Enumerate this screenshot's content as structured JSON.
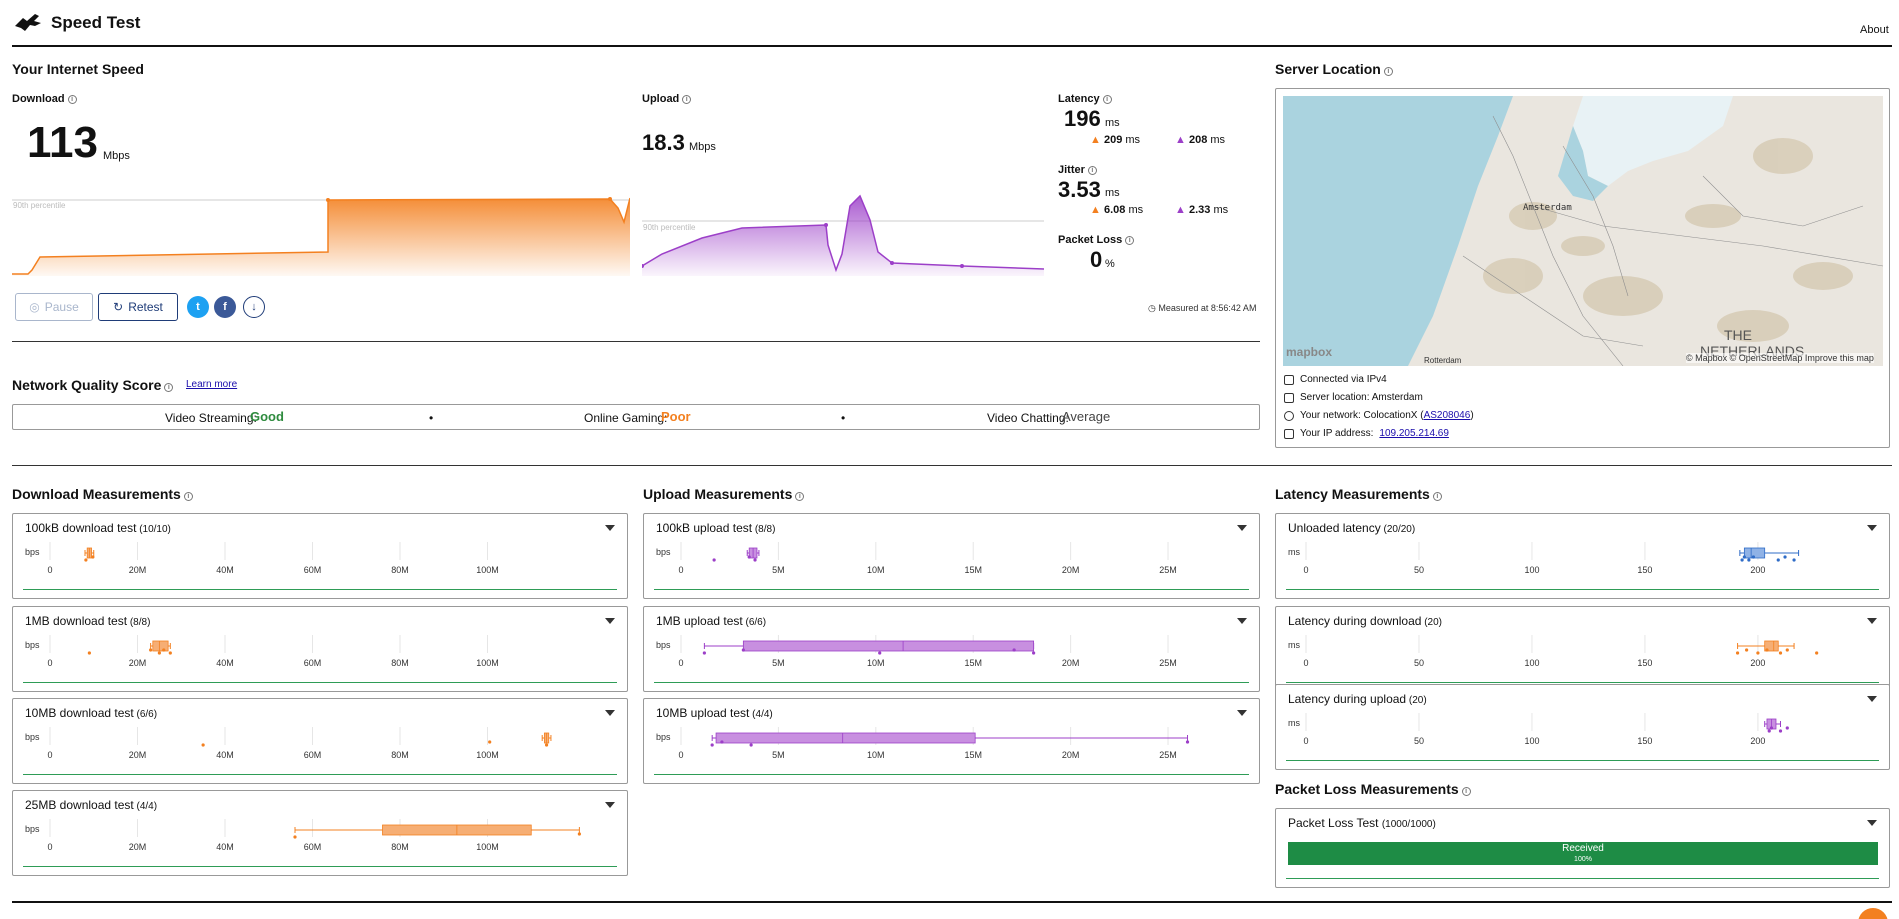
{
  "header": {
    "title": "Speed Test",
    "about": "About"
  },
  "speed": {
    "section_title": "Your Internet Speed",
    "download": {
      "label": "Download",
      "value": "113",
      "unit": "Mbps",
      "percentile": "90th percentile"
    },
    "upload": {
      "label": "Upload",
      "value": "18.3",
      "unit": "Mbps",
      "percentile": "90th percentile"
    },
    "latency": {
      "label": "Latency",
      "value": "196",
      "unit": "ms",
      "down": "209",
      "up": "208",
      "sub_unit": "ms"
    },
    "jitter": {
      "label": "Jitter",
      "value": "3.53",
      "unit": "ms",
      "down": "6.08",
      "up": "2.33",
      "sub_unit": "ms"
    },
    "packet_loss": {
      "label": "Packet Loss",
      "value": "0",
      "unit": "%"
    },
    "pause_label": "Pause",
    "retest_label": "Retest",
    "measured_at": "Measured at 8:56:42 AM"
  },
  "nq": {
    "title": "Network Quality Score",
    "learn_more": "Learn more",
    "streaming_label": "Video Streaming:",
    "streaming_value": "Good",
    "gaming_label": "Online Gaming:",
    "gaming_value": "Poor",
    "chatting_label": "Video Chatting:",
    "chatting_value": "Average",
    "sep": "•"
  },
  "server": {
    "title": "Server Location",
    "map_city": "Amsterdam",
    "map_country_1": "THE",
    "map_country_2": "NETHERLANDS",
    "map_city2": "Rotterdam",
    "mapbox": "mapbox",
    "attribution": "© Mapbox © OpenStreetMap  Improve this map",
    "connected": "Connected via IPv4",
    "location": "Server location: Amsterdam",
    "network_prefix": "Your network: ColocationX (",
    "network_link": "AS208046",
    "network_suffix": ")",
    "ip_prefix": "Your IP address:",
    "ip_link": "109.205.214.69"
  },
  "download_meas": {
    "title": "Download Measurements",
    "unit": "bps",
    "ticks": [
      "0",
      "20M",
      "40M",
      "60M",
      "80M",
      "100M"
    ],
    "tests": [
      {
        "name": "100kB download test",
        "count": "(10/10)"
      },
      {
        "name": "1MB download test",
        "count": "(8/8)"
      },
      {
        "name": "10MB download test",
        "count": "(6/6)"
      },
      {
        "name": "25MB download test",
        "count": "(4/4)"
      }
    ]
  },
  "upload_meas": {
    "title": "Upload Measurements",
    "unit": "bps",
    "ticks": [
      "0",
      "5M",
      "10M",
      "15M",
      "20M",
      "25M"
    ],
    "tests": [
      {
        "name": "100kB upload test",
        "count": "(8/8)"
      },
      {
        "name": "1MB upload test",
        "count": "(6/6)"
      },
      {
        "name": "10MB upload test",
        "count": "(4/4)"
      }
    ]
  },
  "latency_meas": {
    "title": "Latency Measurements",
    "unit": "ms",
    "ticks": [
      "0",
      "50",
      "100",
      "150",
      "200"
    ],
    "tests": [
      {
        "name": "Unloaded latency",
        "count": "(20/20)"
      },
      {
        "name": "Latency during download",
        "count": "(20)"
      },
      {
        "name": "Latency during upload",
        "count": "(20)"
      }
    ]
  },
  "packet_meas": {
    "title": "Packet Loss Measurements",
    "test_name": "Packet Loss Test",
    "test_count": "(1000/1000)",
    "bar_label": "Received",
    "bar_pct": "100%",
    "received_fraction": 1.0
  },
  "colors": {
    "download": "#f38020",
    "download_fill": "#f6ae74",
    "upload": "#9c3fc8",
    "upload_fill": "#c88fe0",
    "latency": "#2f6cc7",
    "latency_fill": "#8fb2e6",
    "good": "#2e8b3e",
    "poor": "#f38020",
    "packet": "#1e8c45"
  },
  "chart_data": [
    {
      "type": "box",
      "title": "100kB download test",
      "unit": "bps",
      "xlim": [
        0,
        120000000
      ],
      "q1": 8500000,
      "median": 9000000,
      "q3": 9500000,
      "min": 8000000,
      "max": 10000000,
      "points": [
        8200000,
        9800000
      ]
    },
    {
      "type": "box",
      "title": "1MB download test",
      "unit": "bps",
      "xlim": [
        0,
        120000000
      ],
      "q1": 23500000,
      "median": 25000000,
      "q3": 27000000,
      "min": 23000000,
      "max": 27500000,
      "points": [
        9000000,
        23000000,
        25000000,
        26000000,
        27500000
      ]
    },
    {
      "type": "box",
      "title": "10MB download test",
      "unit": "bps",
      "xlim": [
        0,
        120000000
      ],
      "q1": 113000000,
      "median": 113500000,
      "q3": 114000000,
      "min": 112500000,
      "max": 114500000,
      "points": [
        35000000,
        100500000,
        113500000
      ]
    },
    {
      "type": "box",
      "title": "25MB download test",
      "unit": "bps",
      "xlim": [
        0,
        120000000
      ],
      "q1": 76000000,
      "median": 93000000,
      "q3": 110000000,
      "min": 56000000,
      "max": 121000000,
      "points": [
        56000000,
        121000000
      ]
    },
    {
      "type": "box",
      "title": "100kB upload test",
      "unit": "bps",
      "xlim": [
        0,
        27000000
      ],
      "q1": 3500000,
      "median": 3700000,
      "q3": 3900000,
      "min": 3400000,
      "max": 4000000,
      "points": [
        1700000,
        3500000,
        3800000
      ]
    },
    {
      "type": "box",
      "title": "1MB upload test",
      "unit": "bps",
      "xlim": [
        0,
        27000000
      ],
      "q1": 3200000,
      "median": 11400000,
      "q3": 18100000,
      "min": 1200000,
      "max": 18100000,
      "points": [
        1200000,
        3200000,
        10200000,
        17100000,
        18100000
      ]
    },
    {
      "type": "box",
      "title": "10MB upload test",
      "unit": "bps",
      "xlim": [
        0,
        27000000
      ],
      "q1": 1800000,
      "median": 8300000,
      "q3": 15100000,
      "min": 1600000,
      "max": 26000000,
      "points": [
        1600000,
        2100000,
        3600000,
        26000000
      ]
    },
    {
      "type": "box",
      "title": "Unloaded latency",
      "unit": "ms",
      "xlim": [
        0,
        235
      ],
      "q1": 194,
      "median": 197,
      "q3": 203,
      "min": 192,
      "max": 218,
      "points": [
        193,
        194,
        196,
        198,
        209,
        212,
        216
      ]
    },
    {
      "type": "box",
      "title": "Latency during download",
      "unit": "ms",
      "xlim": [
        0,
        235
      ],
      "q1": 203,
      "median": 207,
      "q3": 209,
      "min": 191,
      "max": 216,
      "points": [
        191,
        195,
        200,
        204,
        210,
        213,
        226
      ]
    },
    {
      "type": "box",
      "title": "Latency during upload",
      "unit": "ms",
      "xlim": [
        0,
        235
      ],
      "q1": 204,
      "median": 206,
      "q3": 208,
      "min": 203,
      "max": 210,
      "points": [
        205,
        206,
        210,
        213
      ]
    }
  ]
}
